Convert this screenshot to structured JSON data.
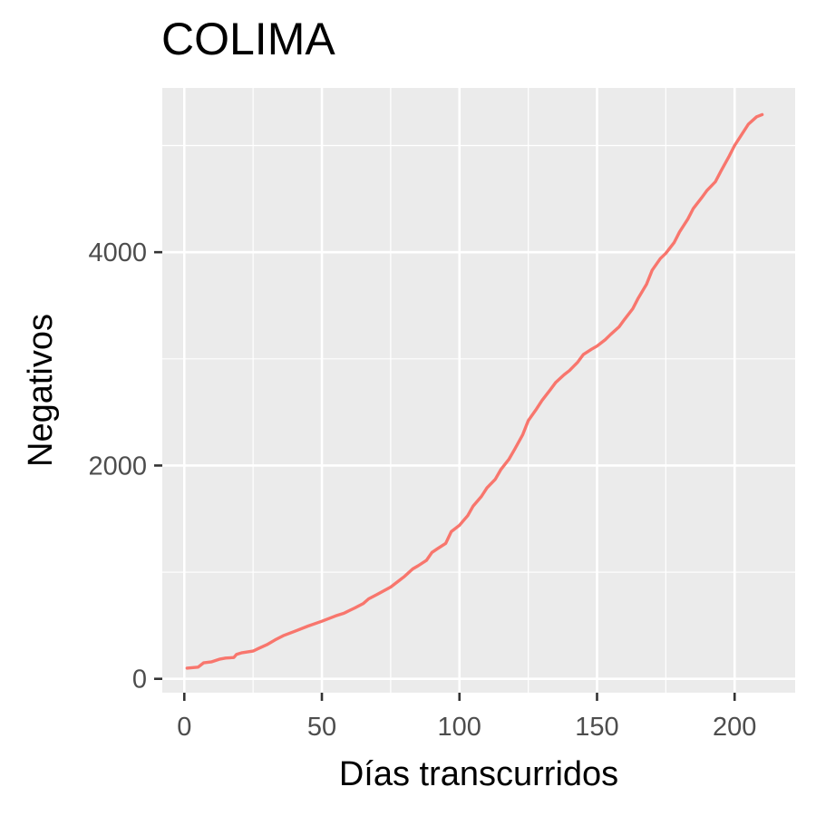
{
  "chart_data": {
    "type": "line",
    "title": "COLIMA",
    "xlabel": "Días transcurridos",
    "ylabel": "Negativos",
    "xlim": [
      -8,
      222
    ],
    "ylim": [
      -130,
      5540
    ],
    "x_ticks": [
      0,
      50,
      100,
      150,
      200
    ],
    "x_minor_ticks": [
      25,
      75,
      125,
      175
    ],
    "y_ticks": [
      0,
      2000,
      4000
    ],
    "y_minor_ticks": [
      1000,
      3000,
      5000
    ],
    "grid": true,
    "panel_background": "#ebebeb",
    "series": [
      {
        "color": "#F8766D",
        "x": [
          1,
          5,
          7,
          10,
          13,
          15,
          18,
          19,
          21,
          25,
          27,
          30,
          33,
          36,
          40,
          45,
          50,
          55,
          58,
          60,
          62,
          65,
          67,
          70,
          75,
          78,
          80,
          83,
          85,
          88,
          90,
          92,
          95,
          97,
          100,
          103,
          105,
          108,
          110,
          113,
          115,
          118,
          120,
          123,
          125,
          128,
          130,
          133,
          135,
          138,
          140,
          143,
          145,
          148,
          150,
          153,
          155,
          158,
          160,
          163,
          165,
          168,
          170,
          173,
          175,
          178,
          180,
          183,
          185,
          188,
          190,
          193,
          195,
          198,
          200,
          203,
          205,
          208,
          210
        ],
        "values": [
          100,
          110,
          150,
          160,
          185,
          195,
          200,
          230,
          245,
          260,
          285,
          320,
          365,
          405,
          445,
          495,
          540,
          590,
          615,
          640,
          665,
          705,
          750,
          790,
          860,
          920,
          960,
          1030,
          1060,
          1110,
          1185,
          1220,
          1270,
          1380,
          1440,
          1530,
          1620,
          1710,
          1790,
          1870,
          1960,
          2060,
          2150,
          2290,
          2420,
          2530,
          2610,
          2710,
          2780,
          2850,
          2890,
          2970,
          3040,
          3090,
          3120,
          3180,
          3230,
          3300,
          3370,
          3470,
          3570,
          3700,
          3830,
          3940,
          3990,
          4090,
          4190,
          4310,
          4410,
          4510,
          4580,
          4660,
          4760,
          4900,
          5000,
          5120,
          5200,
          5270,
          5290
        ]
      }
    ]
  }
}
